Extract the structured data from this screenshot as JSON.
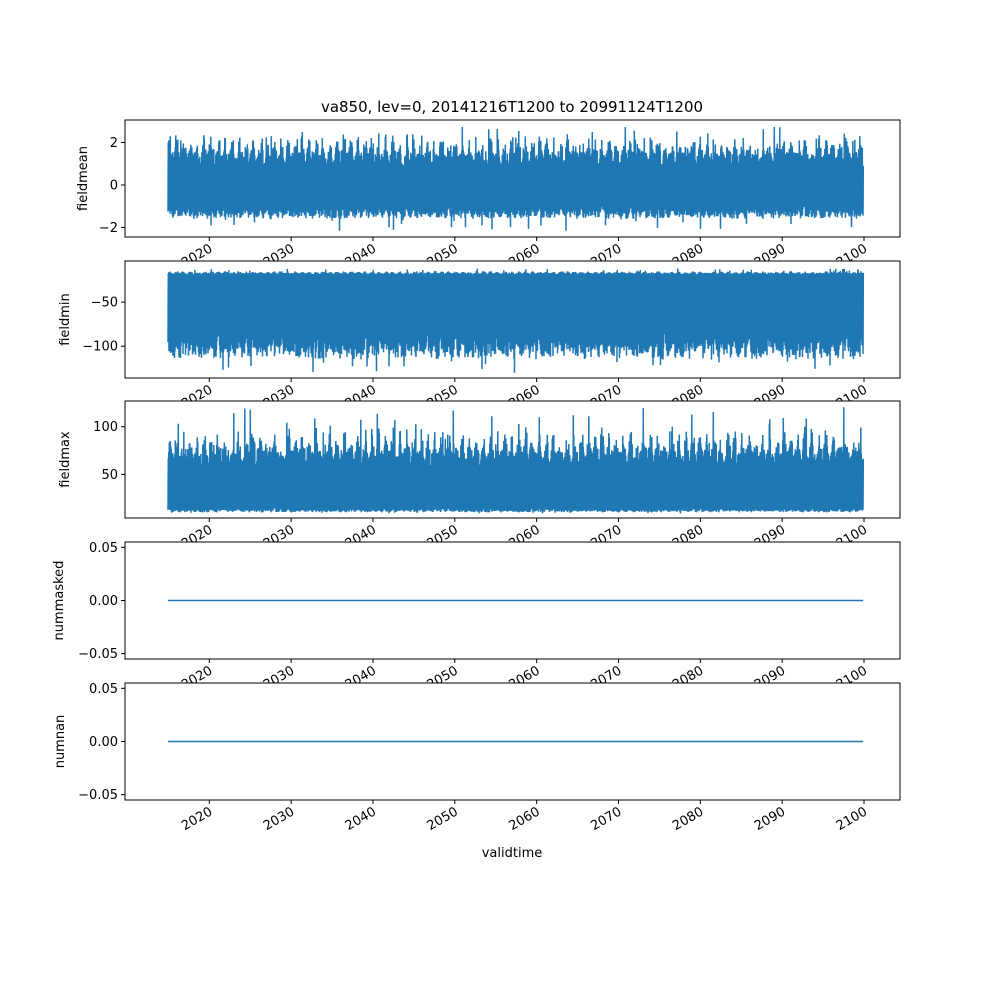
{
  "chart_data": {
    "type": "line",
    "title": "va850, lev=0, 20141216T1200 to 20991124T1200",
    "xlabel": "validtime",
    "x_range": [
      "2014-12-16T12:00",
      "2099-11-24T12:00"
    ],
    "xlim": [
      2009.7,
      2104.4
    ],
    "xticks": [
      2020,
      2030,
      2040,
      2050,
      2060,
      2070,
      2080,
      2090,
      2100
    ],
    "xtick_labels": [
      "2020",
      "2030",
      "2040",
      "2050",
      "2060",
      "2070",
      "2080",
      "2090",
      "2100"
    ],
    "color": "#1f77b4",
    "grid": false,
    "panels": [
      {
        "ylabel": "fieldmean",
        "ylim": [
          -2.45,
          3.06
        ],
        "yticks": [
          -2,
          0,
          2
        ],
        "ytick_labels": [
          "−2",
          "0",
          "2"
        ],
        "series": {
          "kind": "noise",
          "typical_low": [
            -1.6,
            -0.8
          ],
          "typical_high": [
            0.8,
            2.6
          ],
          "min": -2.2,
          "max": 2.8
        }
      },
      {
        "ylabel": "fieldmin",
        "ylim": [
          -136,
          -3.4
        ],
        "yticks": [
          -100,
          -50
        ],
        "ytick_labels": [
          "−100",
          "−50"
        ],
        "series": {
          "kind": "noise",
          "typical_low": [
            -115,
            -75
          ],
          "typical_high": [
            -19,
            -14
          ],
          "min": -130,
          "max": -12
        }
      },
      {
        "ylabel": "fieldmax",
        "ylim": [
          4.2,
          127
        ],
        "yticks": [
          50,
          100
        ],
        "ytick_labels": [
          "50",
          "100"
        ],
        "series": {
          "kind": "noise",
          "typical_low": [
            10,
            16
          ],
          "typical_high": [
            55,
            105
          ],
          "min": 9,
          "max": 121
        }
      },
      {
        "ylabel": "nummasked",
        "ylim": [
          -0.055,
          0.055
        ],
        "yticks": [
          -0.05,
          0,
          0.05
        ],
        "ytick_labels": [
          "−0.05",
          "0.00",
          "0.05"
        ],
        "series": {
          "kind": "constant",
          "value": 0
        }
      },
      {
        "ylabel": "numnan",
        "ylim": [
          -0.055,
          0.055
        ],
        "yticks": [
          -0.05,
          0,
          0.05
        ],
        "ytick_labels": [
          "−0.05",
          "0.00",
          "0.05"
        ],
        "series": {
          "kind": "constant",
          "value": 0
        }
      }
    ]
  }
}
